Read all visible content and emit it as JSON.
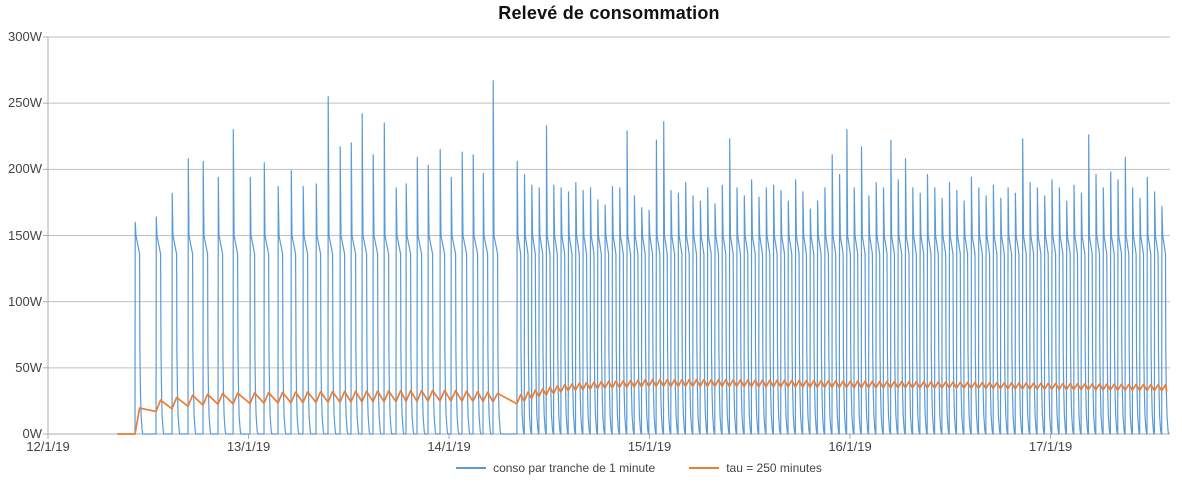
{
  "chart_data": {
    "type": "line",
    "title": "Relevé de consommation",
    "grid": "horizontal-only",
    "legend_position": "bottom-center",
    "x_axis": {
      "tick_labels": [
        "12/1/19",
        "13/1/19",
        "14/1/19",
        "15/1/19",
        "16/1/19",
        "17/1/19"
      ],
      "hours_per_tick": 24,
      "axis_start_h": 0,
      "axis_end_h": 134.3
    },
    "y_axis": {
      "tick_labels": [
        "0W",
        "50W",
        "100W",
        "150W",
        "200W",
        "250W",
        "300W"
      ],
      "min": 0,
      "max": 300,
      "step": 50
    },
    "series": [
      {
        "name": "conso par tranche de 1 minute",
        "color": "#5B9BD5",
        "type": "minute-spike-cycles",
        "quiet_start_h": 8.3,
        "on_start_level_w": 150,
        "on_end_level_w": 136,
        "sparse_phase": {
          "on_duration_h": 0.55,
          "spikes_t_peakW": [
            [
              10.41,
              160
            ],
            [
              12.93,
              164
            ],
            [
              14.84,
              182
            ],
            [
              16.76,
              208
            ],
            [
              18.55,
              206
            ],
            [
              20.35,
              194
            ],
            [
              22.15,
              230
            ],
            [
              24.18,
              194
            ],
            [
              25.86,
              205
            ],
            [
              27.53,
              187
            ],
            [
              29.09,
              199
            ],
            [
              30.52,
              187
            ],
            [
              32.08,
              189
            ],
            [
              33.51,
              255
            ],
            [
              34.95,
              217
            ],
            [
              36.27,
              220
            ],
            [
              37.58,
              242
            ],
            [
              38.9,
              211
            ],
            [
              40.22,
              235
            ],
            [
              41.65,
              186
            ],
            [
              42.85,
              189
            ],
            [
              44.17,
              209
            ],
            [
              45.48,
              203
            ],
            [
              46.92,
              215
            ],
            [
              48.24,
              194
            ],
            [
              49.55,
              213
            ],
            [
              50.87,
              211
            ],
            [
              52.07,
              197
            ],
            [
              53.26,
              267
            ]
          ]
        },
        "dense_phase": {
          "start_h": 56.13,
          "interval_h": 0.877,
          "on_duration_h": 0.45,
          "peaksW": [
            206,
            196,
            188,
            186,
            233,
            188,
            186,
            183,
            190,
            184,
            186,
            177,
            173,
            187,
            186,
            229,
            180,
            171,
            169,
            222,
            236,
            184,
            182,
            190,
            180,
            176,
            186,
            174,
            188,
            223,
            186,
            180,
            192,
            179,
            186,
            188,
            184,
            176,
            192,
            183,
            170,
            176,
            186,
            211,
            196,
            230,
            186,
            217,
            180,
            190,
            186,
            222,
            192,
            208,
            186,
            182,
            196,
            186,
            178,
            190,
            184,
            176,
            194,
            186,
            180,
            188,
            178,
            186,
            182,
            223,
            190,
            186,
            180,
            192,
            186,
            176,
            188,
            182,
            226,
            196,
            186,
            198,
            192,
            209,
            186,
            178,
            194,
            183,
            172
          ]
        }
      },
      {
        "name": "tau = 250 minutes",
        "color": "#ED7D31",
        "type": "sawtooth-average",
        "zero_until_h": 10.41,
        "start_h": 8.3,
        "end_point": [
          133.9,
          32
        ],
        "envelope_t_base_amp": [
          [
            8.3,
            0,
            0
          ],
          [
            10.4,
            14,
            4
          ],
          [
            12.9,
            21,
            4
          ],
          [
            14.8,
            23,
            4
          ],
          [
            16.8,
            25,
            4
          ],
          [
            20,
            26.5,
            4
          ],
          [
            24,
            27,
            4
          ],
          [
            33,
            28,
            4
          ],
          [
            48,
            29,
            4
          ],
          [
            53,
            28,
            3.5
          ],
          [
            56,
            25.5,
            3
          ],
          [
            58,
            30,
            2.8
          ],
          [
            62,
            35,
            2.5
          ],
          [
            66,
            37,
            2.5
          ],
          [
            72,
            38.5,
            2.5
          ],
          [
            80,
            38.5,
            2.5
          ],
          [
            90,
            38,
            2.5
          ],
          [
            96,
            37.5,
            2.5
          ],
          [
            108,
            37,
            2.2
          ],
          [
            120,
            36,
            2.2
          ],
          [
            133.4,
            35,
            2.2
          ]
        ]
      }
    ],
    "colors": {
      "gridline": "#C0C0C0",
      "axis": "#ACACAC",
      "axis_text": "#444444",
      "title_text": "#111111"
    }
  }
}
